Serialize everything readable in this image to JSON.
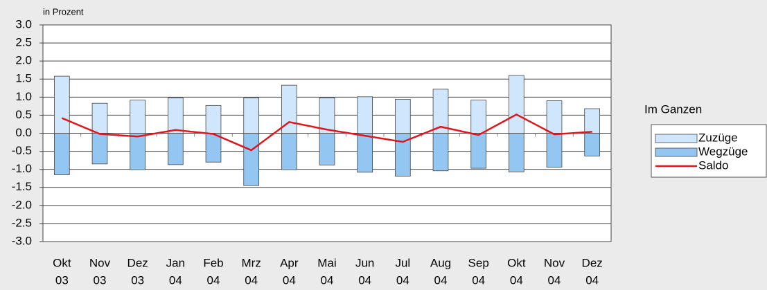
{
  "chart_data": {
    "type": "bar_line",
    "y_label": "in Prozent",
    "legend_title": "Im Ganzen",
    "categories": [
      [
        "Okt",
        "03"
      ],
      [
        "Nov",
        "03"
      ],
      [
        "Dez",
        "03"
      ],
      [
        "Jan",
        "04"
      ],
      [
        "Feb",
        "04"
      ],
      [
        "Mrz",
        "04"
      ],
      [
        "Apr",
        "04"
      ],
      [
        "Mai",
        "04"
      ],
      [
        "Jun",
        "04"
      ],
      [
        "Jul",
        "04"
      ],
      [
        "Aug",
        "04"
      ],
      [
        "Sep",
        "04"
      ],
      [
        "Okt",
        "04"
      ],
      [
        "Nov",
        "04"
      ],
      [
        "Dez",
        "04"
      ]
    ],
    "series": [
      {
        "name": "Zuzüge",
        "kind": "bar",
        "color": "#cfe6fc",
        "values": [
          1.58,
          0.83,
          0.92,
          0.98,
          0.77,
          0.98,
          1.33,
          0.98,
          1.01,
          0.94,
          1.22,
          0.92,
          1.6,
          0.9,
          0.68
        ]
      },
      {
        "name": "Wegzüge",
        "kind": "bar",
        "color": "#94c6f2",
        "values": [
          -1.15,
          -0.85,
          -1.01,
          -0.87,
          -0.8,
          -1.45,
          -1.01,
          -0.88,
          -1.08,
          -1.19,
          -1.04,
          -0.97,
          -1.07,
          -0.94,
          -0.63
        ]
      },
      {
        "name": "Saldo",
        "kind": "line",
        "color": "#e3151c",
        "values": [
          0.42,
          -0.02,
          -0.09,
          0.09,
          -0.02,
          -0.47,
          0.31,
          0.1,
          -0.07,
          -0.24,
          0.18,
          -0.05,
          0.52,
          -0.03,
          0.04
        ]
      }
    ],
    "ylim": [
      -3,
      3
    ],
    "yticks": [
      {
        "value": 3,
        "label": "3.0"
      },
      2.5,
      {
        "value": 2,
        "label": "2.0"
      },
      1.5,
      {
        "value": 1,
        "label": "1.0"
      },
      0.5,
      {
        "value": 0,
        "label": "0.0"
      },
      -0.5,
      {
        "value": -1,
        "label": "-1.0"
      },
      -1.5,
      {
        "value": -2,
        "label": "-2.0"
      },
      -2.5,
      {
        "value": -3,
        "label": "-3.0"
      }
    ],
    "grid": true
  }
}
